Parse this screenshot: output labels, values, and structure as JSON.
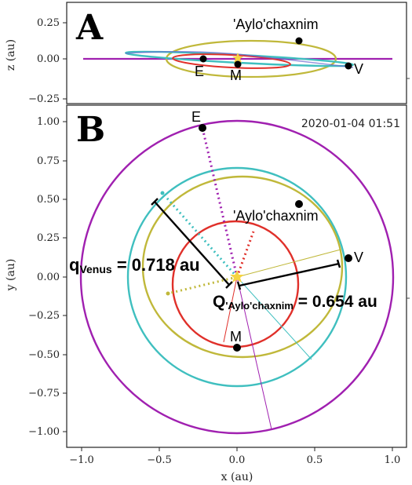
{
  "panel_a": {
    "letter": "A",
    "ylabel": "z (au)",
    "yticks": [
      "0.25",
      "0.00",
      "−0.25"
    ],
    "labels": {
      "aylo": "'Aylo'chaxnim",
      "e": "E",
      "m": "M",
      "v": "V"
    }
  },
  "panel_b": {
    "letter": "B",
    "timestamp": "2020-01-04 01:51",
    "ylabel": "y (au)",
    "xlabel": "x (au)",
    "yticks": [
      "1.00",
      "0.75",
      "0.50",
      "0.25",
      "0.00",
      "−0.25",
      "−0.50",
      "−0.75",
      "−1.00"
    ],
    "xticks": [
      "−1.0",
      "−0.5",
      "0.0",
      "0.5",
      "1.0"
    ],
    "labels": {
      "aylo": "'Aylo'chaxnim",
      "e": "E",
      "m": "M",
      "v": "V"
    },
    "q_venus": {
      "main": "q",
      "sub": "Venus",
      "value": " = 0.718 au"
    },
    "q_aylo": {
      "main": "Q",
      "sub": "'Aylo'chaxnim",
      "value": " = 0.654 au"
    }
  },
  "colors": {
    "earth": "#a020b0",
    "venus": "#3fbfbf",
    "aylo": "#c0b83a",
    "mercury": "#e0302a",
    "sun": "#f5d442"
  }
}
